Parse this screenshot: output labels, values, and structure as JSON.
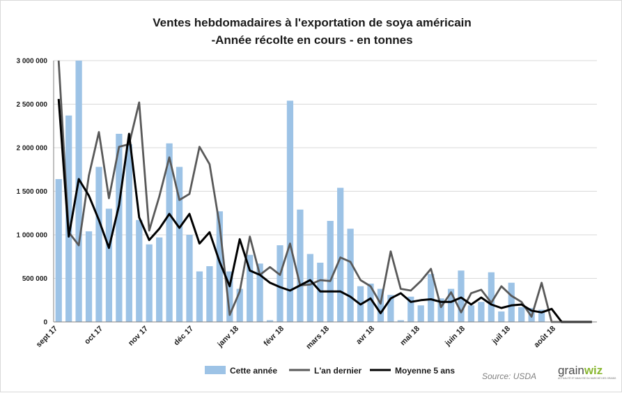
{
  "chart_data": {
    "type": "bar",
    "title": "Ventes hebdomadaires à l'exportation de soya américain",
    "subtitle": "-Année récolte en cours - en tonnes",
    "ylim": [
      0,
      3000000
    ],
    "yticks": [
      0,
      500000,
      1000000,
      1500000,
      2000000,
      2500000,
      3000000
    ],
    "ytick_labels": [
      "0",
      "500 000",
      "1 000 000",
      "1 500 000",
      "2 000 000",
      "2 500 000",
      "3 000 000"
    ],
    "month_labels": [
      {
        "label": "sept 17",
        "week": 0
      },
      {
        "label": "oct 17",
        "week": 4.5
      },
      {
        "label": "nov 17",
        "week": 9
      },
      {
        "label": "déc 17",
        "week": 13.5
      },
      {
        "label": "janv 18",
        "week": 18
      },
      {
        "label": "févr 18",
        "week": 22.5
      },
      {
        "label": "mars 18",
        "week": 27
      },
      {
        "label": "avr 18",
        "week": 31.5
      },
      {
        "label": "mai 18",
        "week": 36
      },
      {
        "label": "juin 18",
        "week": 40.5
      },
      {
        "label": "juil 18",
        "week": 45
      },
      {
        "label": "août 18",
        "week": 49.5
      }
    ],
    "weeks": 54,
    "series": [
      {
        "name": "Cette année",
        "kind": "bar",
        "color": "#9dc3e6",
        "values": [
          1640000,
          2370000,
          3000000,
          1040000,
          1780000,
          1300000,
          2160000,
          2040000,
          1170000,
          890000,
          970000,
          2050000,
          1780000,
          1000000,
          580000,
          640000,
          1270000,
          580000,
          380000,
          770000,
          670000,
          20000,
          880000,
          2540000,
          1290000,
          780000,
          680000,
          1160000,
          1540000,
          1070000,
          410000,
          440000,
          380000,
          310000,
          20000,
          290000,
          190000,
          550000,
          270000,
          380000,
          590000,
          190000,
          230000,
          570000,
          120000,
          450000,
          170000,
          160000,
          140000,
          0,
          0,
          0,
          0,
          0
        ]
      },
      {
        "name": "L'an dernier",
        "kind": "line",
        "color": "#595959",
        "values": [
          3000000,
          1030000,
          880000,
          1680000,
          2180000,
          1420000,
          2010000,
          2040000,
          2520000,
          1050000,
          1440000,
          1890000,
          1400000,
          1470000,
          2010000,
          1810000,
          1110000,
          80000,
          350000,
          980000,
          540000,
          630000,
          540000,
          900000,
          420000,
          430000,
          480000,
          470000,
          740000,
          690000,
          480000,
          410000,
          210000,
          810000,
          380000,
          360000,
          470000,
          610000,
          170000,
          340000,
          110000,
          330000,
          370000,
          220000,
          410000,
          300000,
          230000,
          60000,
          450000,
          0,
          0,
          0,
          0,
          0
        ]
      },
      {
        "name": "Moyenne 5 ans",
        "kind": "line",
        "color": "#000000",
        "values": [
          2560000,
          980000,
          1640000,
          1450000,
          1170000,
          850000,
          1340000,
          2160000,
          1200000,
          940000,
          1070000,
          1240000,
          1080000,
          1240000,
          900000,
          1030000,
          690000,
          410000,
          950000,
          590000,
          540000,
          450000,
          400000,
          360000,
          420000,
          480000,
          350000,
          350000,
          350000,
          290000,
          200000,
          270000,
          100000,
          270000,
          330000,
          230000,
          250000,
          260000,
          230000,
          230000,
          280000,
          200000,
          280000,
          200000,
          160000,
          190000,
          200000,
          130000,
          110000,
          150000,
          0,
          0,
          0,
          0
        ]
      }
    ],
    "legend": {
      "position": "bottom"
    },
    "source": "Source:  USDA",
    "branding": {
      "part1": "grain",
      "part2": "wiz",
      "tagline": "ACTUALITÉ ET ANALYSE DU MARCHÉ DES GRAINS",
      "accent_color": "#8ab833"
    }
  }
}
